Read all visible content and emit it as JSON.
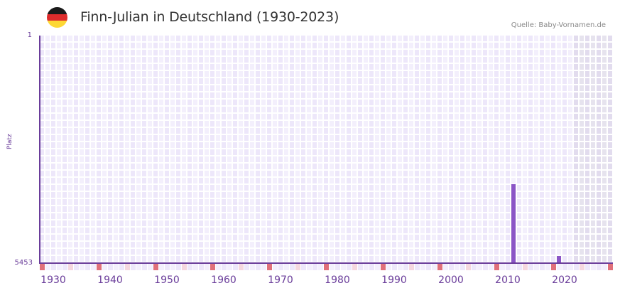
{
  "header": {
    "title": "Finn-Julian in Deutschland (1930-2023)",
    "source": "Quelle: Baby-Vornamen.de",
    "flag_colors": [
      "#1a1a1a",
      "#dd2c2c",
      "#fdd835"
    ]
  },
  "axis": {
    "y_label": "Platz",
    "y_top": "1",
    "y_bottom": "5453"
  },
  "colors": {
    "bar": "#8b55c6",
    "axis": "#6a3d9a",
    "tick_major": "#e0707a",
    "tick_minor": "#f5d7df",
    "cell_a": "#ede7fa",
    "cell_b": "#f3effc",
    "future_a": "#e2dcee",
    "future_b": "#e6e3ee"
  },
  "chart_data": {
    "type": "bar",
    "title": "Finn-Julian in Deutschland (1930-2023)",
    "xlabel": "",
    "ylabel": "Platz",
    "ylim": [
      5453,
      1
    ],
    "y_inverted": true,
    "x_range": [
      1928,
      2028
    ],
    "x_tick_labels": [
      "1930",
      "1940",
      "1950",
      "1960",
      "1970",
      "1980",
      "1990",
      "2000",
      "2010",
      "2020"
    ],
    "categories": [
      "2011",
      "2019"
    ],
    "values": [
      3560,
      5290
    ],
    "series": [
      {
        "name": "Platz",
        "points": [
          {
            "year": 2011,
            "rank": 3560
          },
          {
            "year": 2019,
            "rank": 5290
          }
        ]
      }
    ],
    "grid": true,
    "shaded_future_from": 2022,
    "legend": "none"
  }
}
